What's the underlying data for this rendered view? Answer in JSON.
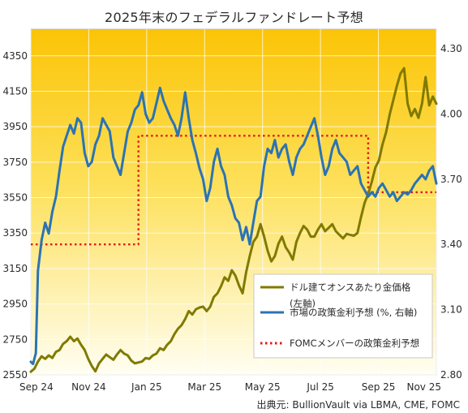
{
  "chart_data": {
    "type": "line",
    "title": "2025年末のフェデラルファンドレート予想",
    "source": "出典元: BullionVault via LBMA, CME, FOMC",
    "x_labels": [
      "Sep 24",
      "Nov 24",
      "Jan 25",
      "Mar 25",
      "May 25",
      "Jul 25",
      "Sep 25",
      "Nov 25"
    ],
    "left_axis": {
      "ylim": [
        2550,
        4500
      ],
      "ticks": [
        2550,
        2750,
        2950,
        3150,
        3350,
        3550,
        3750,
        3950,
        4150,
        4350
      ]
    },
    "right_axis": {
      "ylim": [
        2.8,
        4.39
      ],
      "ticks": [
        "2.80",
        "3.10",
        "3.40",
        "3.70",
        "4.00",
        "4.30"
      ]
    },
    "legend": {
      "position": "bottom-right",
      "items": [
        {
          "label_line1": "ドル建てオンスあたり金価格",
          "label_line2": "(左軸)",
          "color": "#807a00",
          "style": "solid"
        },
        {
          "label_line1": "市場の政策金利予想 (%, 右軸)",
          "color": "#2b73b3",
          "style": "solid"
        },
        {
          "label_line1": "FOMCメンバーの政策金利予想",
          "color": "#e31a1a",
          "style": "dotted"
        }
      ]
    },
    "series": [
      {
        "name": "ドル建てオンスあたり金価格",
        "axis": "left",
        "color": "#807a00",
        "points": [
          [
            0.0,
            2568
          ],
          [
            0.5,
            2585
          ],
          [
            1.0,
            2625
          ],
          [
            1.5,
            2655
          ],
          [
            2.0,
            2640
          ],
          [
            2.5,
            2660
          ],
          [
            3.0,
            2645
          ],
          [
            3.5,
            2680
          ],
          [
            4.0,
            2690
          ],
          [
            4.5,
            2725
          ],
          [
            5.0,
            2740
          ],
          [
            5.5,
            2765
          ],
          [
            6.0,
            2740
          ],
          [
            6.5,
            2755
          ],
          [
            7.0,
            2720
          ],
          [
            7.5,
            2690
          ],
          [
            8.0,
            2640
          ],
          [
            8.5,
            2600
          ],
          [
            9.0,
            2570
          ],
          [
            9.5,
            2615
          ],
          [
            10.0,
            2640
          ],
          [
            10.5,
            2665
          ],
          [
            11.0,
            2650
          ],
          [
            11.5,
            2635
          ],
          [
            12.0,
            2665
          ],
          [
            12.5,
            2690
          ],
          [
            13.0,
            2670
          ],
          [
            13.5,
            2660
          ],
          [
            14.0,
            2630
          ],
          [
            14.5,
            2615
          ],
          [
            15.0,
            2620
          ],
          [
            15.5,
            2625
          ],
          [
            16.0,
            2645
          ],
          [
            16.5,
            2640
          ],
          [
            17.0,
            2660
          ],
          [
            17.5,
            2670
          ],
          [
            18.0,
            2700
          ],
          [
            18.5,
            2690
          ],
          [
            19.0,
            2720
          ],
          [
            19.5,
            2740
          ],
          [
            20.0,
            2780
          ],
          [
            20.5,
            2810
          ],
          [
            21.0,
            2830
          ],
          [
            21.5,
            2865
          ],
          [
            22.0,
            2910
          ],
          [
            22.5,
            2890
          ],
          [
            23.0,
            2920
          ],
          [
            23.5,
            2930
          ],
          [
            24.0,
            2935
          ],
          [
            24.5,
            2910
          ],
          [
            25.0,
            2935
          ],
          [
            25.5,
            2990
          ],
          [
            26.0,
            3010
          ],
          [
            26.5,
            3050
          ],
          [
            27.0,
            3100
          ],
          [
            27.5,
            3080
          ],
          [
            28.0,
            3140
          ],
          [
            28.5,
            3110
          ],
          [
            29.0,
            3055
          ],
          [
            29.5,
            3010
          ],
          [
            30.0,
            3130
          ],
          [
            30.5,
            3220
          ],
          [
            31.0,
            3300
          ],
          [
            31.5,
            3330
          ],
          [
            32.0,
            3400
          ],
          [
            32.5,
            3330
          ],
          [
            33.0,
            3250
          ],
          [
            33.5,
            3190
          ],
          [
            34.0,
            3220
          ],
          [
            34.5,
            3290
          ],
          [
            35.0,
            3330
          ],
          [
            35.5,
            3270
          ],
          [
            36.0,
            3240
          ],
          [
            36.5,
            3200
          ],
          [
            37.0,
            3300
          ],
          [
            37.5,
            3350
          ],
          [
            38.0,
            3390
          ],
          [
            38.5,
            3370
          ],
          [
            39.0,
            3330
          ],
          [
            39.5,
            3330
          ],
          [
            40.0,
            3370
          ],
          [
            40.5,
            3400
          ],
          [
            41.0,
            3360
          ],
          [
            41.5,
            3380
          ],
          [
            42.0,
            3400
          ],
          [
            42.5,
            3360
          ],
          [
            43.0,
            3340
          ],
          [
            43.5,
            3320
          ],
          [
            44.0,
            3345
          ],
          [
            44.5,
            3340
          ],
          [
            45.0,
            3335
          ],
          [
            45.5,
            3350
          ],
          [
            46.0,
            3440
          ],
          [
            46.5,
            3520
          ],
          [
            47.0,
            3570
          ],
          [
            47.5,
            3640
          ],
          [
            48.0,
            3720
          ],
          [
            48.5,
            3760
          ],
          [
            49.0,
            3850
          ],
          [
            49.5,
            3920
          ],
          [
            50.0,
            4020
          ],
          [
            50.5,
            4100
          ],
          [
            51.0,
            4180
          ],
          [
            51.5,
            4250
          ],
          [
            52.0,
            4280
          ],
          [
            52.5,
            4080
          ],
          [
            53.0,
            4010
          ],
          [
            53.5,
            4050
          ],
          [
            54.0,
            4000
          ],
          [
            54.5,
            4080
          ],
          [
            55.0,
            4230
          ],
          [
            55.5,
            4070
          ],
          [
            56.0,
            4120
          ],
          [
            56.5,
            4080
          ]
        ]
      },
      {
        "name": "市場の政策金利予想",
        "axis": "right",
        "color": "#2b73b3",
        "points": [
          [
            0.0,
            2.86
          ],
          [
            0.3,
            2.85
          ],
          [
            0.7,
            2.9
          ],
          [
            1.0,
            3.28
          ],
          [
            1.5,
            3.42
          ],
          [
            2.0,
            3.5
          ],
          [
            2.5,
            3.45
          ],
          [
            3.0,
            3.55
          ],
          [
            3.5,
            3.62
          ],
          [
            4.0,
            3.74
          ],
          [
            4.5,
            3.85
          ],
          [
            5.0,
            3.9
          ],
          [
            5.5,
            3.95
          ],
          [
            6.0,
            3.91
          ],
          [
            6.5,
            3.98
          ],
          [
            7.0,
            3.96
          ],
          [
            7.5,
            3.82
          ],
          [
            8.0,
            3.76
          ],
          [
            8.5,
            3.78
          ],
          [
            9.0,
            3.86
          ],
          [
            9.5,
            3.9
          ],
          [
            10.0,
            3.98
          ],
          [
            10.5,
            3.95
          ],
          [
            11.0,
            3.92
          ],
          [
            11.5,
            3.8
          ],
          [
            12.0,
            3.76
          ],
          [
            12.5,
            3.72
          ],
          [
            13.0,
            3.82
          ],
          [
            13.5,
            3.92
          ],
          [
            14.0,
            3.96
          ],
          [
            14.5,
            4.02
          ],
          [
            15.0,
            4.04
          ],
          [
            15.5,
            4.1
          ],
          [
            16.0,
            4.0
          ],
          [
            16.5,
            3.96
          ],
          [
            17.0,
            3.98
          ],
          [
            17.5,
            4.05
          ],
          [
            18.0,
            4.12
          ],
          [
            18.5,
            4.06
          ],
          [
            19.0,
            4.02
          ],
          [
            19.5,
            3.98
          ],
          [
            20.0,
            3.95
          ],
          [
            20.5,
            3.9
          ],
          [
            21.0,
            3.98
          ],
          [
            21.5,
            4.1
          ],
          [
            22.0,
            3.98
          ],
          [
            22.5,
            3.88
          ],
          [
            23.0,
            3.82
          ],
          [
            23.5,
            3.75
          ],
          [
            24.0,
            3.7
          ],
          [
            24.5,
            3.6
          ],
          [
            25.0,
            3.66
          ],
          [
            25.5,
            3.78
          ],
          [
            26.0,
            3.84
          ],
          [
            26.5,
            3.76
          ],
          [
            27.0,
            3.72
          ],
          [
            27.5,
            3.62
          ],
          [
            28.0,
            3.58
          ],
          [
            28.5,
            3.52
          ],
          [
            29.0,
            3.5
          ],
          [
            29.5,
            3.42
          ],
          [
            30.0,
            3.48
          ],
          [
            30.5,
            3.4
          ],
          [
            31.0,
            3.5
          ],
          [
            31.5,
            3.6
          ],
          [
            32.0,
            3.62
          ],
          [
            32.5,
            3.76
          ],
          [
            33.0,
            3.84
          ],
          [
            33.5,
            3.82
          ],
          [
            34.0,
            3.88
          ],
          [
            34.5,
            3.8
          ],
          [
            35.0,
            3.84
          ],
          [
            35.5,
            3.86
          ],
          [
            36.0,
            3.78
          ],
          [
            36.5,
            3.72
          ],
          [
            37.0,
            3.8
          ],
          [
            37.5,
            3.84
          ],
          [
            38.0,
            3.86
          ],
          [
            38.5,
            3.9
          ],
          [
            39.0,
            3.94
          ],
          [
            39.5,
            3.98
          ],
          [
            40.0,
            3.9
          ],
          [
            40.5,
            3.8
          ],
          [
            41.0,
            3.72
          ],
          [
            41.5,
            3.76
          ],
          [
            42.0,
            3.84
          ],
          [
            42.5,
            3.88
          ],
          [
            43.0,
            3.82
          ],
          [
            43.5,
            3.8
          ],
          [
            44.0,
            3.78
          ],
          [
            44.5,
            3.72
          ],
          [
            45.0,
            3.74
          ],
          [
            45.5,
            3.76
          ],
          [
            46.0,
            3.68
          ],
          [
            46.5,
            3.65
          ],
          [
            47.0,
            3.62
          ],
          [
            47.5,
            3.64
          ],
          [
            48.0,
            3.62
          ],
          [
            48.5,
            3.66
          ],
          [
            49.0,
            3.68
          ],
          [
            49.5,
            3.65
          ],
          [
            50.0,
            3.62
          ],
          [
            50.5,
            3.64
          ],
          [
            51.0,
            3.6
          ],
          [
            51.5,
            3.62
          ],
          [
            52.0,
            3.64
          ],
          [
            52.5,
            3.63
          ],
          [
            53.0,
            3.65
          ],
          [
            53.5,
            3.68
          ],
          [
            54.0,
            3.7
          ],
          [
            54.5,
            3.72
          ],
          [
            55.0,
            3.7
          ],
          [
            55.5,
            3.74
          ],
          [
            56.0,
            3.76
          ],
          [
            56.5,
            3.68
          ]
        ]
      },
      {
        "name": "FOMCメンバーの政策金利予想",
        "axis": "right",
        "color": "#e31a1a",
        "style": "dotted",
        "points": [
          [
            0.0,
            3.4
          ],
          [
            15.0,
            3.4
          ],
          [
            15.0,
            3.9
          ],
          [
            47.0,
            3.9
          ],
          [
            47.0,
            3.64
          ],
          [
            56.5,
            3.64
          ]
        ]
      }
    ]
  }
}
